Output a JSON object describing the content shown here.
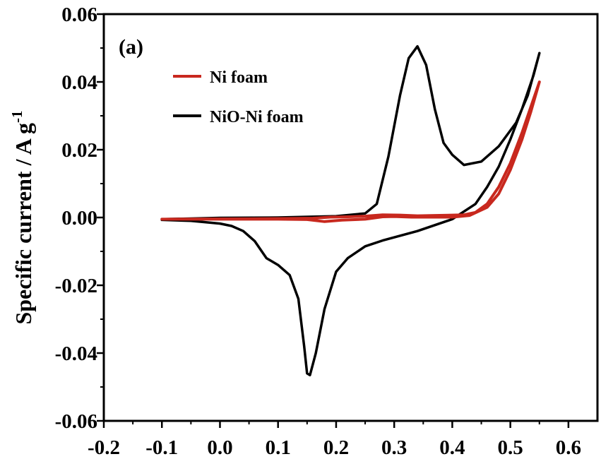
{
  "chart_data": {
    "type": "line",
    "panel_label": "(a)",
    "xlabel": "",
    "ylabel": "Specific current / A g",
    "ylabel_superscript": "-1",
    "xlim": [
      -0.2,
      0.65
    ],
    "ylim": [
      -0.06,
      0.06
    ],
    "x_ticks": [
      "-0.2",
      "-0.1",
      "0.0",
      "0.1",
      "0.2",
      "0.3",
      "0.4",
      "0.5",
      "0.6"
    ],
    "y_ticks": [
      "-0.06",
      "-0.04",
      "-0.02",
      "0.00",
      "0.02",
      "0.04",
      "0.06"
    ],
    "grid": false,
    "legend_position": "top-left",
    "series": [
      {
        "name": "Ni foam",
        "color": "#c8281e",
        "x": [
          -0.1,
          0.0,
          0.1,
          0.15,
          0.18,
          0.21,
          0.25,
          0.28,
          0.3,
          0.33,
          0.36,
          0.4,
          0.43,
          0.46,
          0.48,
          0.5,
          0.52,
          0.535,
          0.55,
          0.54,
          0.52,
          0.5,
          0.48,
          0.46,
          0.44,
          0.42,
          0.4,
          0.37,
          0.34,
          0.31,
          0.28,
          0.25,
          0.22,
          0.19,
          0.16,
          0.12,
          0.05,
          -0.1
        ],
        "y": [
          -0.0005,
          -0.0005,
          -0.0005,
          -0.0006,
          -0.0012,
          -0.0008,
          -0.0005,
          0.0002,
          0.0003,
          0.0001,
          0.0001,
          0.0001,
          0.0006,
          0.003,
          0.007,
          0.014,
          0.023,
          0.031,
          0.04,
          0.035,
          0.025,
          0.016,
          0.009,
          0.004,
          0.0015,
          0.0008,
          0.0007,
          0.0006,
          0.0005,
          0.0007,
          0.0008,
          0.0004,
          0.0002,
          0.0001,
          -0.0002,
          -0.0003,
          -0.0004,
          -0.0005
        ]
      },
      {
        "name": "NiO-Ni foam",
        "color": "#000000",
        "x": [
          -0.1,
          0.0,
          0.1,
          0.2,
          0.25,
          0.27,
          0.29,
          0.31,
          0.325,
          0.34,
          0.355,
          0.37,
          0.385,
          0.4,
          0.42,
          0.45,
          0.48,
          0.51,
          0.53,
          0.55,
          0.54,
          0.52,
          0.5,
          0.48,
          0.46,
          0.44,
          0.4,
          0.34,
          0.28,
          0.25,
          0.22,
          0.2,
          0.18,
          0.165,
          0.155,
          0.15,
          0.145,
          0.135,
          0.12,
          0.1,
          0.08,
          0.06,
          0.04,
          0.02,
          0.0,
          -0.05,
          -0.1
        ],
        "y": [
          -0.0005,
          -0.0001,
          0.0,
          0.0004,
          0.0012,
          0.004,
          0.018,
          0.036,
          0.047,
          0.0505,
          0.045,
          0.032,
          0.022,
          0.0185,
          0.0155,
          0.0165,
          0.021,
          0.028,
          0.036,
          0.0485,
          0.042,
          0.032,
          0.023,
          0.015,
          0.009,
          0.004,
          -0.0005,
          -0.004,
          -0.0068,
          -0.0085,
          -0.012,
          -0.016,
          -0.027,
          -0.04,
          -0.0465,
          -0.046,
          -0.038,
          -0.024,
          -0.017,
          -0.014,
          -0.012,
          -0.007,
          -0.004,
          -0.0025,
          -0.0018,
          -0.001,
          -0.0007
        ]
      }
    ]
  }
}
